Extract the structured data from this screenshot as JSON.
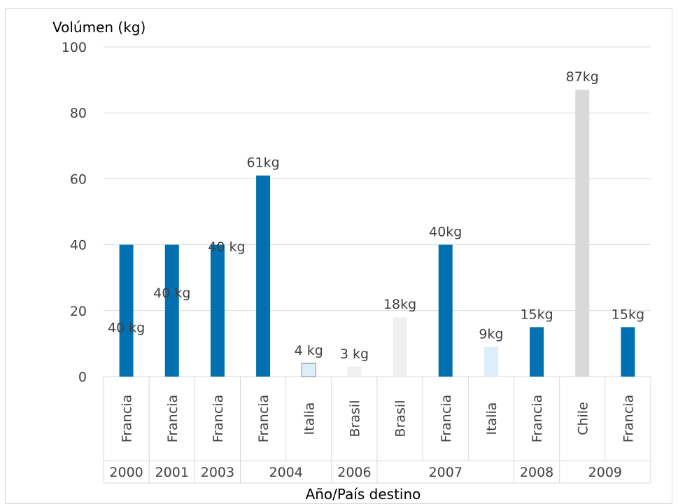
{
  "chart_data": {
    "type": "bar",
    "ylabel": "Volúmen (kg)",
    "xlabel": "Año/País destino",
    "ylim": [
      0,
      100
    ],
    "yticks": [
      "0",
      "20",
      "40",
      "60",
      "80",
      "100"
    ],
    "grid": true,
    "bars": [
      {
        "year": "2000",
        "country": "Francia",
        "value": 40,
        "label": "40 kg",
        "color": "#0070b0"
      },
      {
        "year": "2001",
        "country": "Francia",
        "value": 40,
        "label": "40 kg",
        "color": "#0070b0"
      },
      {
        "year": "2003",
        "country": "Francia",
        "value": 40,
        "label": "40 kg",
        "color": "#0070b0"
      },
      {
        "year": "2004",
        "country": "Francia",
        "value": 61,
        "label": "61kg",
        "color": "#0070b0"
      },
      {
        "year": "2004",
        "country": "Italia",
        "value": 4,
        "label": "4 kg",
        "color": "#deeef8"
      },
      {
        "year": "2006",
        "country": "Brasil",
        "value": 3,
        "label": "3 kg",
        "color": "#f0f0f0"
      },
      {
        "year": "2007",
        "country": "Brasil",
        "value": 18,
        "label": "18kg",
        "color": "#f0f0f0"
      },
      {
        "year": "2007",
        "country": "Francia",
        "value": 40,
        "label": "40kg",
        "color": "#0070b0"
      },
      {
        "year": "2007",
        "country": "Italia",
        "value": 9,
        "label": "9kg",
        "color": "#deeef8"
      },
      {
        "year": "2008",
        "country": "Francia",
        "value": 15,
        "label": "15kg",
        "color": "#0070b0"
      },
      {
        "year": "2009",
        "country": "Chile",
        "value": 87,
        "label": "87kg",
        "color": "#d9d9d9"
      },
      {
        "year": "2009",
        "country": "Francia",
        "value": 15,
        "label": "15kg",
        "color": "#0070b0"
      }
    ],
    "year_groups": [
      {
        "year": "2000",
        "count": 1
      },
      {
        "year": "2001",
        "count": 1
      },
      {
        "year": "2003",
        "count": 1
      },
      {
        "year": "2004",
        "count": 2
      },
      {
        "year": "2006",
        "count": 1
      },
      {
        "year": "2007",
        "count": 3
      },
      {
        "year": "2008",
        "count": 1
      },
      {
        "year": "2009",
        "count": 2
      }
    ]
  }
}
